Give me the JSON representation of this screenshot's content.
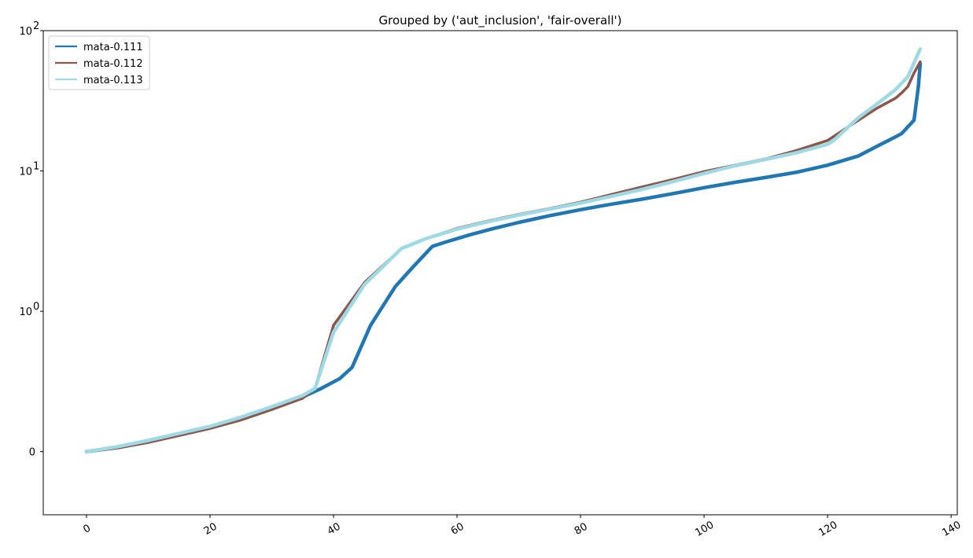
{
  "chart_data": {
    "type": "line",
    "title": "Grouped by ('aut_inclusion', 'fair-overall')",
    "xlabel": "",
    "ylabel": "",
    "yscale": "symlog",
    "xlim": [
      -7,
      141
    ],
    "ylim": [
      -0.45,
      100
    ],
    "grid": false,
    "legend_position": "top-left",
    "x_ticks": [
      0,
      20,
      40,
      60,
      80,
      100,
      120,
      140
    ],
    "x_tick_labels": [
      "0",
      "20",
      "40",
      "60",
      "80",
      "100",
      "120",
      "140"
    ],
    "y_ticks": [
      {
        "value": 0,
        "base": "0",
        "exp": ""
      },
      {
        "value": 1,
        "base": "10",
        "exp": "0"
      },
      {
        "value": 10,
        "base": "10",
        "exp": "1"
      },
      {
        "value": 100,
        "base": "10",
        "exp": "2"
      }
    ],
    "series": [
      {
        "name": "mata-0.111",
        "color": "#1f77b4",
        "width": 4.5,
        "points": [
          [
            0,
            0
          ],
          [
            5,
            0.03
          ],
          [
            10,
            0.07
          ],
          [
            15,
            0.12
          ],
          [
            20,
            0.17
          ],
          [
            25,
            0.23
          ],
          [
            30,
            0.31
          ],
          [
            35,
            0.39
          ],
          [
            38,
            0.45
          ],
          [
            41,
            0.52
          ],
          [
            43,
            0.6
          ],
          [
            46,
            0.9
          ],
          [
            50,
            1.5
          ],
          [
            53,
            2.1
          ],
          [
            56,
            2.9
          ],
          [
            58,
            3.1
          ],
          [
            62,
            3.5
          ],
          [
            66,
            3.9
          ],
          [
            70,
            4.3
          ],
          [
            75,
            4.8
          ],
          [
            80,
            5.3
          ],
          [
            85,
            5.8
          ],
          [
            90,
            6.3
          ],
          [
            95,
            6.9
          ],
          [
            100,
            7.6
          ],
          [
            105,
            8.3
          ],
          [
            110,
            9.0
          ],
          [
            115,
            9.8
          ],
          [
            120,
            11.0
          ],
          [
            125,
            12.8
          ],
          [
            128,
            15.0
          ],
          [
            131,
            17.5
          ],
          [
            132,
            18.5
          ],
          [
            134,
            23.0
          ],
          [
            134.7,
            40.0
          ],
          [
            135,
            58.0
          ]
        ]
      },
      {
        "name": "mata-0.112",
        "color": "#8c564b",
        "width": 3.5,
        "points": [
          [
            0,
            0
          ],
          [
            5,
            0.025
          ],
          [
            10,
            0.065
          ],
          [
            15,
            0.115
          ],
          [
            20,
            0.165
          ],
          [
            25,
            0.225
          ],
          [
            30,
            0.3
          ],
          [
            35,
            0.38
          ],
          [
            37,
            0.45
          ],
          [
            40,
            0.9
          ],
          [
            45,
            1.6
          ],
          [
            51,
            2.8
          ],
          [
            55,
            3.3
          ],
          [
            60,
            3.9
          ],
          [
            65,
            4.4
          ],
          [
            70,
            4.9
          ],
          [
            75,
            5.4
          ],
          [
            80,
            6.0
          ],
          [
            85,
            6.8
          ],
          [
            90,
            7.7
          ],
          [
            95,
            8.7
          ],
          [
            100,
            9.9
          ],
          [
            105,
            11.0
          ],
          [
            110,
            12.2
          ],
          [
            115,
            14.0
          ],
          [
            120,
            16.5
          ],
          [
            125,
            23.0
          ],
          [
            128,
            28.0
          ],
          [
            131,
            33.0
          ],
          [
            132,
            36.0
          ],
          [
            133,
            40.0
          ],
          [
            134,
            50.0
          ],
          [
            135,
            60.0
          ]
        ]
      },
      {
        "name": "mata-0.113",
        "color": "#9edae5",
        "width": 4.5,
        "points": [
          [
            0,
            0
          ],
          [
            5,
            0.035
          ],
          [
            10,
            0.08
          ],
          [
            15,
            0.13
          ],
          [
            20,
            0.18
          ],
          [
            25,
            0.245
          ],
          [
            30,
            0.32
          ],
          [
            35,
            0.4
          ],
          [
            37,
            0.45
          ],
          [
            40,
            0.85
          ],
          [
            45,
            1.55
          ],
          [
            51,
            2.8
          ],
          [
            55,
            3.3
          ],
          [
            60,
            3.85
          ],
          [
            65,
            4.35
          ],
          [
            70,
            4.85
          ],
          [
            75,
            5.35
          ],
          [
            80,
            5.9
          ],
          [
            85,
            6.6
          ],
          [
            90,
            7.4
          ],
          [
            95,
            8.4
          ],
          [
            100,
            9.6
          ],
          [
            105,
            10.9
          ],
          [
            110,
            12.1
          ],
          [
            115,
            13.5
          ],
          [
            120,
            15.5
          ],
          [
            121,
            16.5
          ],
          [
            125,
            24.0
          ],
          [
            128,
            30.0
          ],
          [
            131,
            38.0
          ],
          [
            133,
            47.0
          ],
          [
            135,
            74.0
          ]
        ]
      }
    ]
  }
}
